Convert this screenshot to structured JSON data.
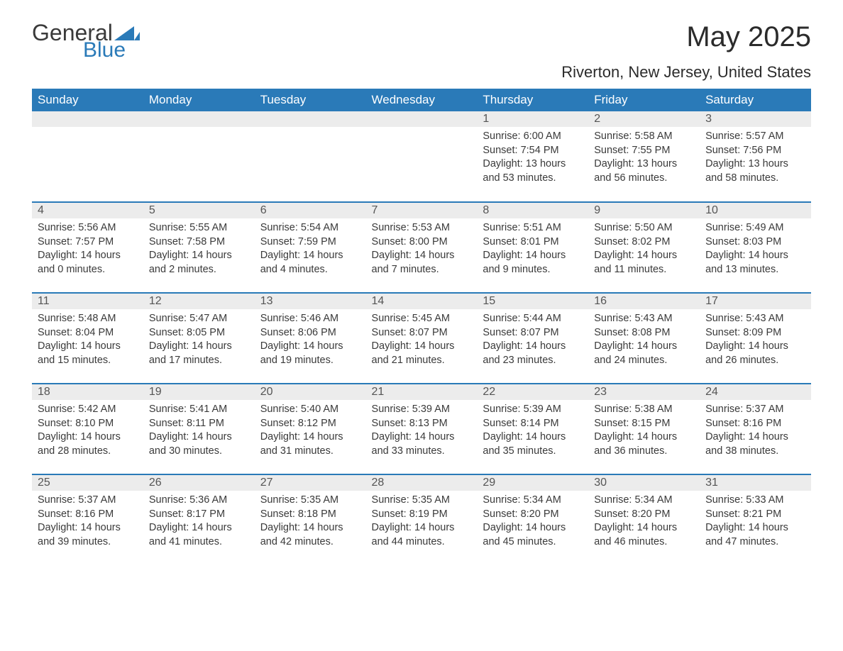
{
  "brand": {
    "general": "General",
    "blue": "Blue"
  },
  "title": "May 2025",
  "location": "Riverton, New Jersey, United States",
  "colors": {
    "header_bg": "#2a7ab8",
    "header_text": "#ffffff",
    "daynum_bg": "#ececec",
    "row_border": "#2a7ab8",
    "body_text": "#3a3a3a"
  },
  "fonts": {
    "title_size": 40,
    "location_size": 22,
    "header_size": 17,
    "body_size": 14.5
  },
  "day_headers": [
    "Sunday",
    "Monday",
    "Tuesday",
    "Wednesday",
    "Thursday",
    "Friday",
    "Saturday"
  ],
  "weeks": [
    [
      null,
      null,
      null,
      null,
      {
        "n": "1",
        "sunrise": "6:00 AM",
        "sunset": "7:54 PM",
        "dl": "13 hours and 53 minutes."
      },
      {
        "n": "2",
        "sunrise": "5:58 AM",
        "sunset": "7:55 PM",
        "dl": "13 hours and 56 minutes."
      },
      {
        "n": "3",
        "sunrise": "5:57 AM",
        "sunset": "7:56 PM",
        "dl": "13 hours and 58 minutes."
      }
    ],
    [
      {
        "n": "4",
        "sunrise": "5:56 AM",
        "sunset": "7:57 PM",
        "dl": "14 hours and 0 minutes."
      },
      {
        "n": "5",
        "sunrise": "5:55 AM",
        "sunset": "7:58 PM",
        "dl": "14 hours and 2 minutes."
      },
      {
        "n": "6",
        "sunrise": "5:54 AM",
        "sunset": "7:59 PM",
        "dl": "14 hours and 4 minutes."
      },
      {
        "n": "7",
        "sunrise": "5:53 AM",
        "sunset": "8:00 PM",
        "dl": "14 hours and 7 minutes."
      },
      {
        "n": "8",
        "sunrise": "5:51 AM",
        "sunset": "8:01 PM",
        "dl": "14 hours and 9 minutes."
      },
      {
        "n": "9",
        "sunrise": "5:50 AM",
        "sunset": "8:02 PM",
        "dl": "14 hours and 11 minutes."
      },
      {
        "n": "10",
        "sunrise": "5:49 AM",
        "sunset": "8:03 PM",
        "dl": "14 hours and 13 minutes."
      }
    ],
    [
      {
        "n": "11",
        "sunrise": "5:48 AM",
        "sunset": "8:04 PM",
        "dl": "14 hours and 15 minutes."
      },
      {
        "n": "12",
        "sunrise": "5:47 AM",
        "sunset": "8:05 PM",
        "dl": "14 hours and 17 minutes."
      },
      {
        "n": "13",
        "sunrise": "5:46 AM",
        "sunset": "8:06 PM",
        "dl": "14 hours and 19 minutes."
      },
      {
        "n": "14",
        "sunrise": "5:45 AM",
        "sunset": "8:07 PM",
        "dl": "14 hours and 21 minutes."
      },
      {
        "n": "15",
        "sunrise": "5:44 AM",
        "sunset": "8:07 PM",
        "dl": "14 hours and 23 minutes."
      },
      {
        "n": "16",
        "sunrise": "5:43 AM",
        "sunset": "8:08 PM",
        "dl": "14 hours and 24 minutes."
      },
      {
        "n": "17",
        "sunrise": "5:43 AM",
        "sunset": "8:09 PM",
        "dl": "14 hours and 26 minutes."
      }
    ],
    [
      {
        "n": "18",
        "sunrise": "5:42 AM",
        "sunset": "8:10 PM",
        "dl": "14 hours and 28 minutes."
      },
      {
        "n": "19",
        "sunrise": "5:41 AM",
        "sunset": "8:11 PM",
        "dl": "14 hours and 30 minutes."
      },
      {
        "n": "20",
        "sunrise": "5:40 AM",
        "sunset": "8:12 PM",
        "dl": "14 hours and 31 minutes."
      },
      {
        "n": "21",
        "sunrise": "5:39 AM",
        "sunset": "8:13 PM",
        "dl": "14 hours and 33 minutes."
      },
      {
        "n": "22",
        "sunrise": "5:39 AM",
        "sunset": "8:14 PM",
        "dl": "14 hours and 35 minutes."
      },
      {
        "n": "23",
        "sunrise": "5:38 AM",
        "sunset": "8:15 PM",
        "dl": "14 hours and 36 minutes."
      },
      {
        "n": "24",
        "sunrise": "5:37 AM",
        "sunset": "8:16 PM",
        "dl": "14 hours and 38 minutes."
      }
    ],
    [
      {
        "n": "25",
        "sunrise": "5:37 AM",
        "sunset": "8:16 PM",
        "dl": "14 hours and 39 minutes."
      },
      {
        "n": "26",
        "sunrise": "5:36 AM",
        "sunset": "8:17 PM",
        "dl": "14 hours and 41 minutes."
      },
      {
        "n": "27",
        "sunrise": "5:35 AM",
        "sunset": "8:18 PM",
        "dl": "14 hours and 42 minutes."
      },
      {
        "n": "28",
        "sunrise": "5:35 AM",
        "sunset": "8:19 PM",
        "dl": "14 hours and 44 minutes."
      },
      {
        "n": "29",
        "sunrise": "5:34 AM",
        "sunset": "8:20 PM",
        "dl": "14 hours and 45 minutes."
      },
      {
        "n": "30",
        "sunrise": "5:34 AM",
        "sunset": "8:20 PM",
        "dl": "14 hours and 46 minutes."
      },
      {
        "n": "31",
        "sunrise": "5:33 AM",
        "sunset": "8:21 PM",
        "dl": "14 hours and 47 minutes."
      }
    ]
  ],
  "labels": {
    "sunrise": "Sunrise:",
    "sunset": "Sunset:",
    "daylight": "Daylight:"
  }
}
